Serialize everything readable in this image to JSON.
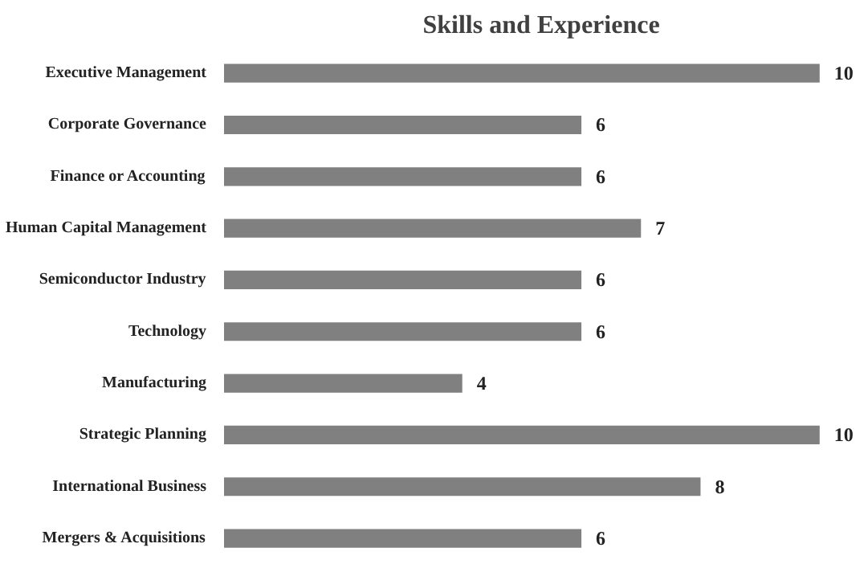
{
  "chart_data": {
    "type": "bar",
    "orientation": "horizontal",
    "title": "Skills and Experience",
    "categories": [
      "Executive Management",
      "Corporate Governance",
      "Finance or Accounting",
      "Human Capital Management",
      "Semiconductor Industry",
      "Technology",
      "Manufacturing",
      "Strategic Planning",
      "International Business",
      "Mergers & Acquisitions"
    ],
    "values": [
      10,
      6,
      6,
      7,
      6,
      6,
      4,
      10,
      8,
      6
    ],
    "color": "#808080",
    "data_labels": true,
    "grid": false
  }
}
